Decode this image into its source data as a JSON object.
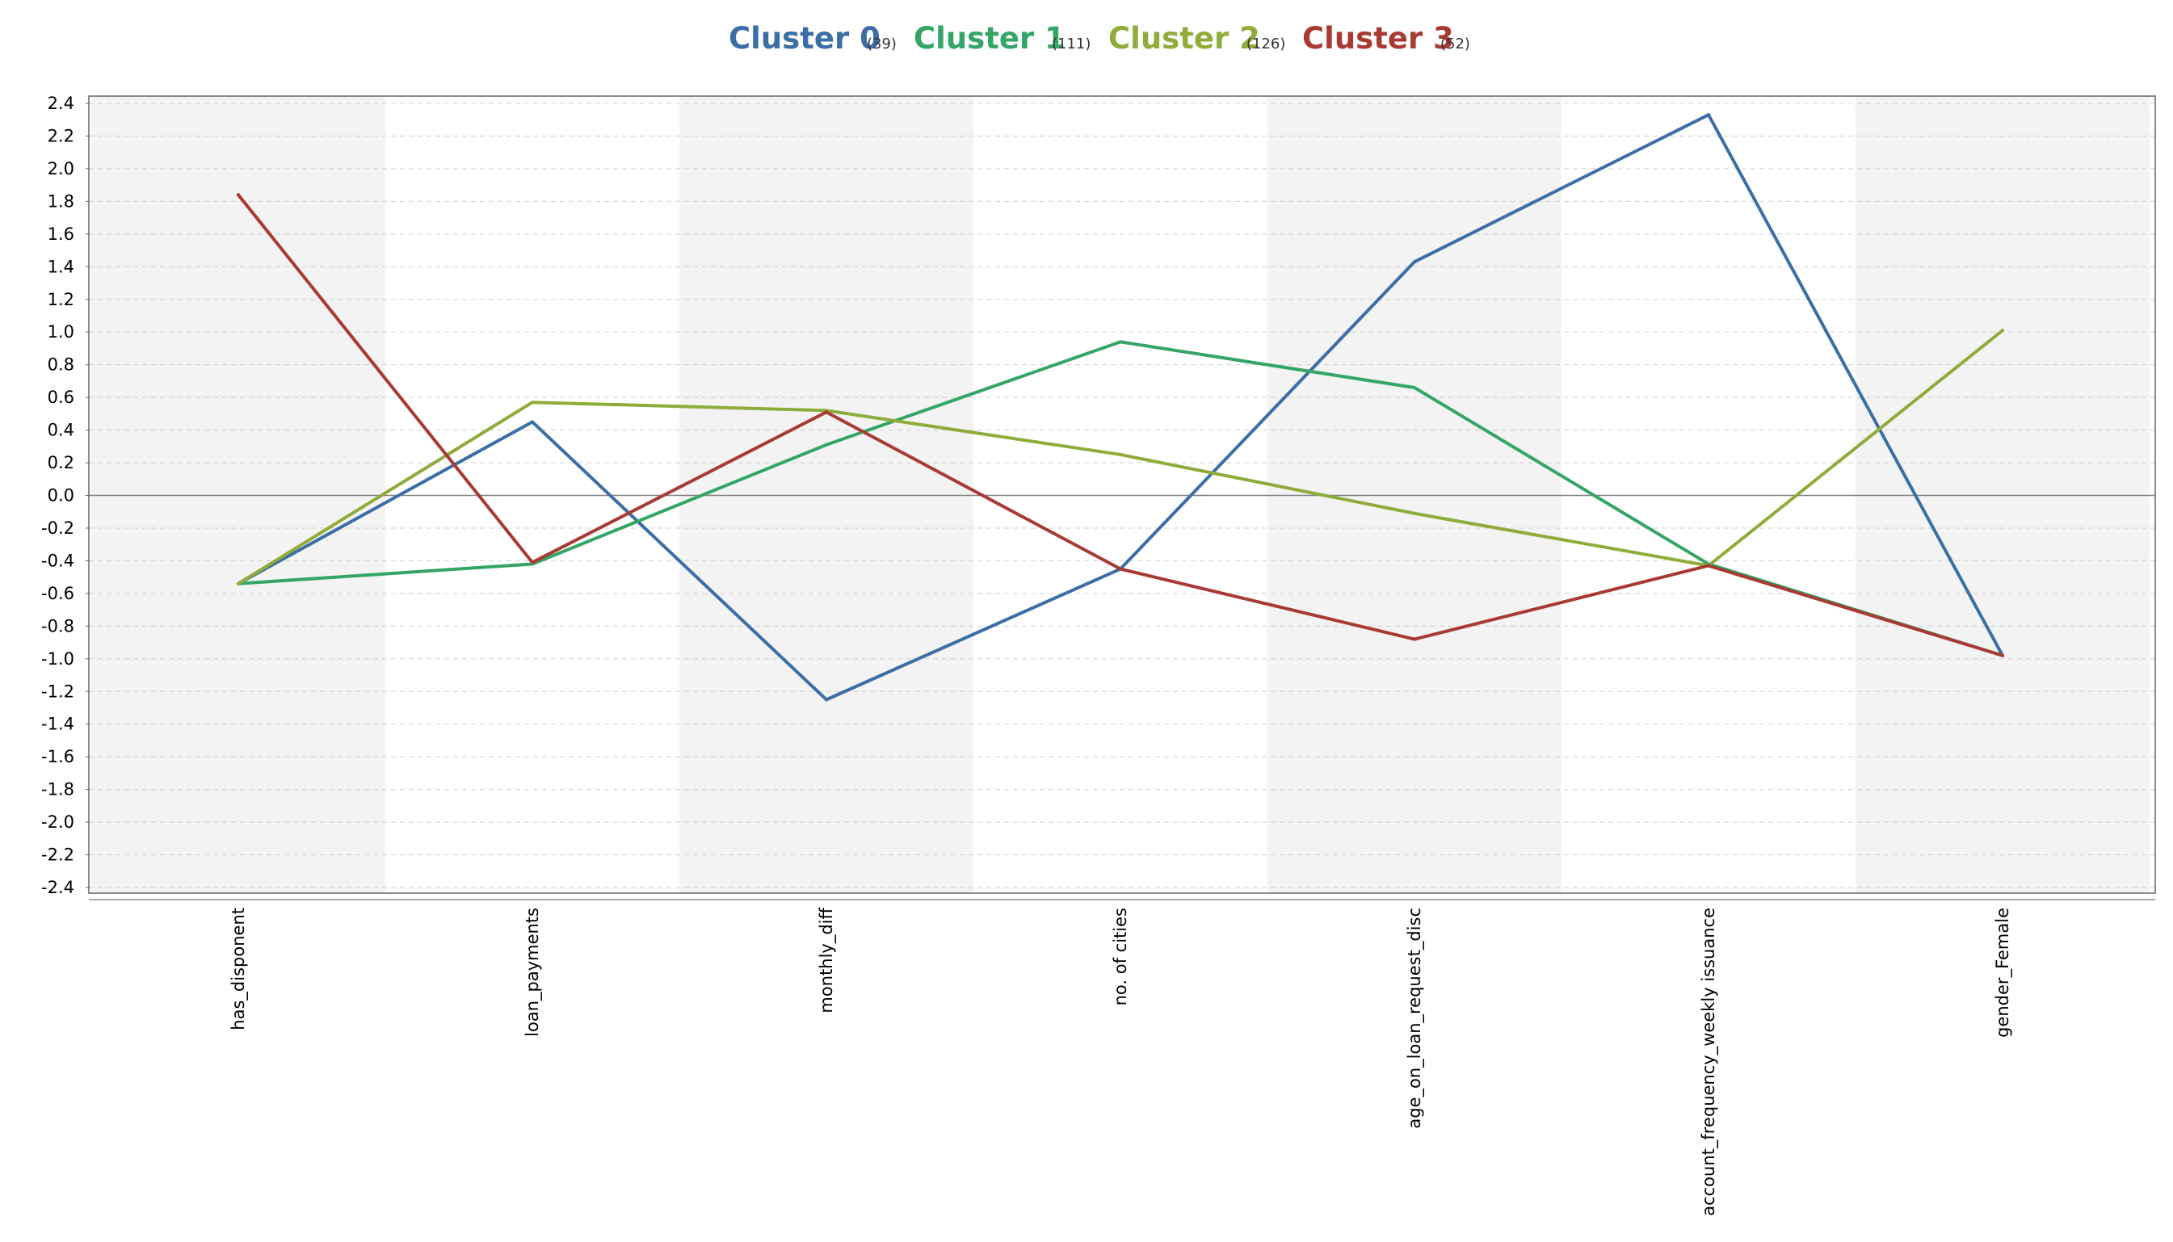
{
  "chart_data": {
    "type": "line",
    "title": "",
    "xlabel": "",
    "ylabel": "",
    "categories": [
      "has_disponent",
      "loan_payments",
      "monthly_diff",
      "no. of cities",
      "age_on_loan_request_disc",
      "account_frequency_weekly issuance",
      "gender_Female"
    ],
    "ylim": [
      -2.4,
      2.4
    ],
    "yticks": [
      "2.4",
      "2.2",
      "2.0",
      "1.8",
      "1.6",
      "1.4",
      "1.2",
      "1.0",
      "0.8",
      "0.6",
      "0.4",
      "0.2",
      "0.0",
      "-0.2",
      "-0.4",
      "-0.6",
      "-0.8",
      "-1.0",
      "-1.2",
      "-1.4",
      "-1.6",
      "-1.8",
      "-2.0",
      "-2.2",
      "-2.4"
    ],
    "grid": true,
    "legend_position": "top-center",
    "series": [
      {
        "name": "Cluster 0",
        "count_label": "(39)",
        "color": "#3a6ea5",
        "values": [
          -0.54,
          0.45,
          -1.25,
          -0.45,
          1.43,
          2.33,
          -0.98
        ]
      },
      {
        "name": "Cluster 1",
        "count_label": "(111)",
        "color": "#33a566",
        "values": [
          -0.54,
          -0.42,
          0.31,
          0.94,
          0.66,
          -0.42,
          -0.98
        ]
      },
      {
        "name": "Cluster 2",
        "count_label": "(126)",
        "color": "#8fac3a",
        "values": [
          -0.54,
          0.57,
          0.52,
          0.25,
          -0.11,
          -0.43,
          1.01
        ]
      },
      {
        "name": "Cluster 3",
        "count_label": "(52)",
        "color": "#a83a32",
        "values": [
          1.84,
          -0.41,
          0.51,
          -0.45,
          -0.88,
          -0.43,
          -0.98
        ]
      }
    ]
  }
}
